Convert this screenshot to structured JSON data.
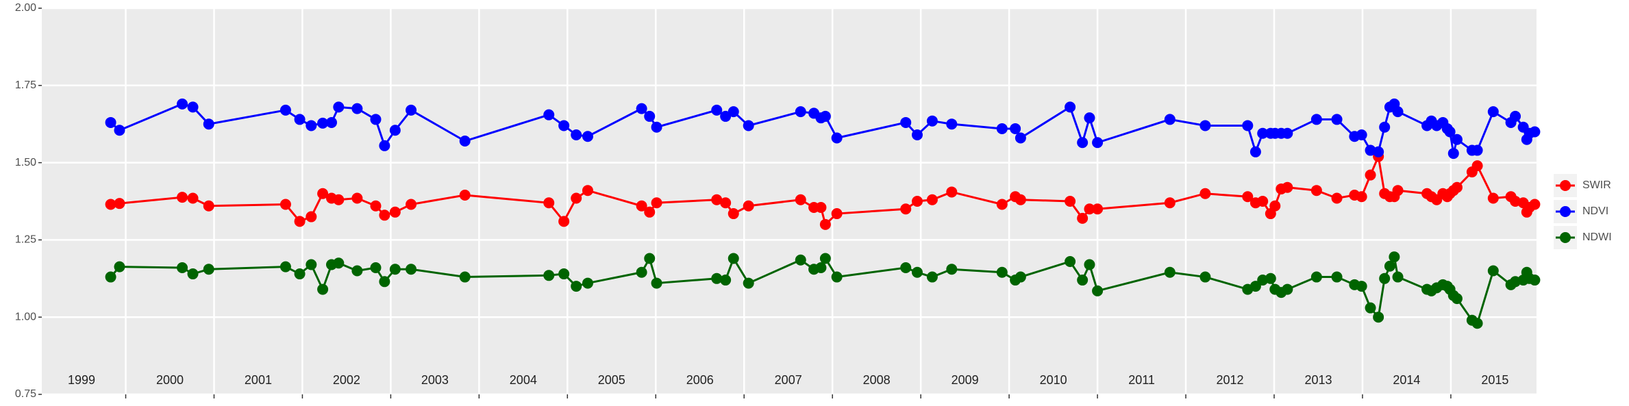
{
  "chart_data": {
    "type": "line",
    "x": [
      1999.83,
      1999.93,
      2000.64,
      2000.76,
      2000.94,
      2001.81,
      2001.97,
      2002.1,
      2002.23,
      2002.33,
      2002.41,
      2002.62,
      2002.83,
      2002.93,
      2003.05,
      2003.23,
      2003.84,
      2004.79,
      2004.96,
      2005.1,
      2005.23,
      2005.84,
      2005.93,
      2006.01,
      2006.69,
      2006.79,
      2006.88,
      2007.05,
      2007.64,
      2007.79,
      2007.87,
      2007.92,
      2008.05,
      2008.83,
      2008.96,
      2009.13,
      2009.35,
      2009.92,
      2010.07,
      2010.13,
      2010.69,
      2010.83,
      2010.91,
      2011.0,
      2011.82,
      2012.22,
      2012.7,
      2012.79,
      2012.87,
      2012.96,
      2013.01,
      2013.08,
      2013.15,
      2013.48,
      2013.71,
      2013.91,
      2013.99,
      2014.09,
      2014.18,
      2014.25,
      2014.31,
      2014.36,
      2014.4,
      2014.73,
      2014.78,
      2014.84,
      2014.91,
      2014.96,
      2014.99,
      2015.03,
      2015.07,
      2015.24,
      2015.3,
      2015.48,
      2015.68,
      2015.73,
      2015.82,
      2015.86,
      2015.89,
      2015.95
    ],
    "series": [
      {
        "name": "SWIR",
        "color": "#ff0000",
        "values": [
          1.365,
          1.368,
          1.388,
          1.385,
          1.36,
          1.365,
          1.31,
          1.325,
          1.4,
          1.385,
          1.38,
          1.385,
          1.36,
          1.33,
          1.34,
          1.365,
          1.395,
          1.37,
          1.31,
          1.385,
          1.41,
          1.36,
          1.34,
          1.37,
          1.38,
          1.37,
          1.335,
          1.36,
          1.38,
          1.355,
          1.355,
          1.3,
          1.335,
          1.35,
          1.375,
          1.38,
          1.405,
          1.365,
          1.39,
          1.38,
          1.375,
          1.32,
          1.35,
          1.35,
          1.37,
          1.4,
          1.39,
          1.37,
          1.375,
          1.335,
          1.36,
          1.415,
          1.42,
          1.41,
          1.385,
          1.395,
          1.39,
          1.46,
          1.52,
          1.4,
          1.39,
          1.39,
          1.41,
          1.4,
          1.39,
          1.38,
          1.4,
          1.39,
          1.4,
          1.41,
          1.42,
          1.47,
          1.49,
          1.385,
          1.39,
          1.375,
          1.37,
          1.34,
          1.355,
          1.365
        ]
      },
      {
        "name": "NDVI",
        "color": "#0000ff",
        "values": [
          1.63,
          1.605,
          1.69,
          1.68,
          1.625,
          1.67,
          1.64,
          1.62,
          1.628,
          1.63,
          1.68,
          1.675,
          1.64,
          1.555,
          1.605,
          1.67,
          1.57,
          1.655,
          1.62,
          1.59,
          1.585,
          1.675,
          1.65,
          1.615,
          1.67,
          1.65,
          1.665,
          1.62,
          1.665,
          1.66,
          1.645,
          1.65,
          1.58,
          1.63,
          1.59,
          1.635,
          1.625,
          1.61,
          1.61,
          1.58,
          1.68,
          1.565,
          1.645,
          1.565,
          1.64,
          1.62,
          1.62,
          1.535,
          1.595,
          1.595,
          1.595,
          1.595,
          1.595,
          1.64,
          1.64,
          1.585,
          1.59,
          1.54,
          1.535,
          1.615,
          1.68,
          1.69,
          1.665,
          1.62,
          1.635,
          1.62,
          1.63,
          1.61,
          1.6,
          1.53,
          1.575,
          1.54,
          1.54,
          1.665,
          1.63,
          1.65,
          1.615,
          1.575,
          1.595,
          1.6
        ]
      },
      {
        "name": "NDWI",
        "color": "#006400",
        "values": [
          1.13,
          1.163,
          1.16,
          1.14,
          1.155,
          1.163,
          1.14,
          1.17,
          1.09,
          1.17,
          1.175,
          1.15,
          1.16,
          1.115,
          1.155,
          1.155,
          1.13,
          1.135,
          1.14,
          1.1,
          1.11,
          1.145,
          1.19,
          1.11,
          1.125,
          1.12,
          1.19,
          1.11,
          1.185,
          1.155,
          1.16,
          1.19,
          1.13,
          1.16,
          1.145,
          1.13,
          1.155,
          1.145,
          1.12,
          1.13,
          1.18,
          1.12,
          1.17,
          1.085,
          1.145,
          1.13,
          1.09,
          1.1,
          1.12,
          1.125,
          1.09,
          1.08,
          1.09,
          1.13,
          1.13,
          1.105,
          1.1,
          1.03,
          1.0,
          1.125,
          1.165,
          1.195,
          1.13,
          1.09,
          1.085,
          1.095,
          1.105,
          1.1,
          1.09,
          1.07,
          1.06,
          0.99,
          0.98,
          1.15,
          1.105,
          1.115,
          1.12,
          1.145,
          1.125,
          1.12
        ]
      }
    ],
    "xlim": [
      1999.05,
      2015.97
    ],
    "xticks": [
      {
        "value": 1999.5,
        "label": "1999"
      },
      {
        "value": 2000.5,
        "label": "2000"
      },
      {
        "value": 2001.5,
        "label": "2001"
      },
      {
        "value": 2002.5,
        "label": "2002"
      },
      {
        "value": 2003.5,
        "label": "2003"
      },
      {
        "value": 2004.5,
        "label": "2004"
      },
      {
        "value": 2005.5,
        "label": "2005"
      },
      {
        "value": 2006.5,
        "label": "2006"
      },
      {
        "value": 2007.5,
        "label": "2007"
      },
      {
        "value": 2008.5,
        "label": "2008"
      },
      {
        "value": 2009.5,
        "label": "2009"
      },
      {
        "value": 2010.5,
        "label": "2010"
      },
      {
        "value": 2011.5,
        "label": "2011"
      },
      {
        "value": 2012.5,
        "label": "2012"
      },
      {
        "value": 2013.5,
        "label": "2013"
      },
      {
        "value": 2014.5,
        "label": "2014"
      },
      {
        "value": 2015.5,
        "label": "2015"
      }
    ],
    "x_gridlines": [
      2000,
      2001,
      2002,
      2003,
      2004,
      2005,
      2006,
      2007,
      2008,
      2009,
      2010,
      2011,
      2012,
      2013,
      2014,
      2015
    ],
    "ylim": [
      0.75,
      2.0
    ],
    "yticks": [
      0.75,
      {
        "value": 1,
        "label": "1.00"
      },
      1.25,
      {
        "value": 1.5,
        "label": "1.50"
      },
      1.75,
      {
        "value": 2,
        "label": "2.00"
      }
    ],
    "grid": true
  }
}
